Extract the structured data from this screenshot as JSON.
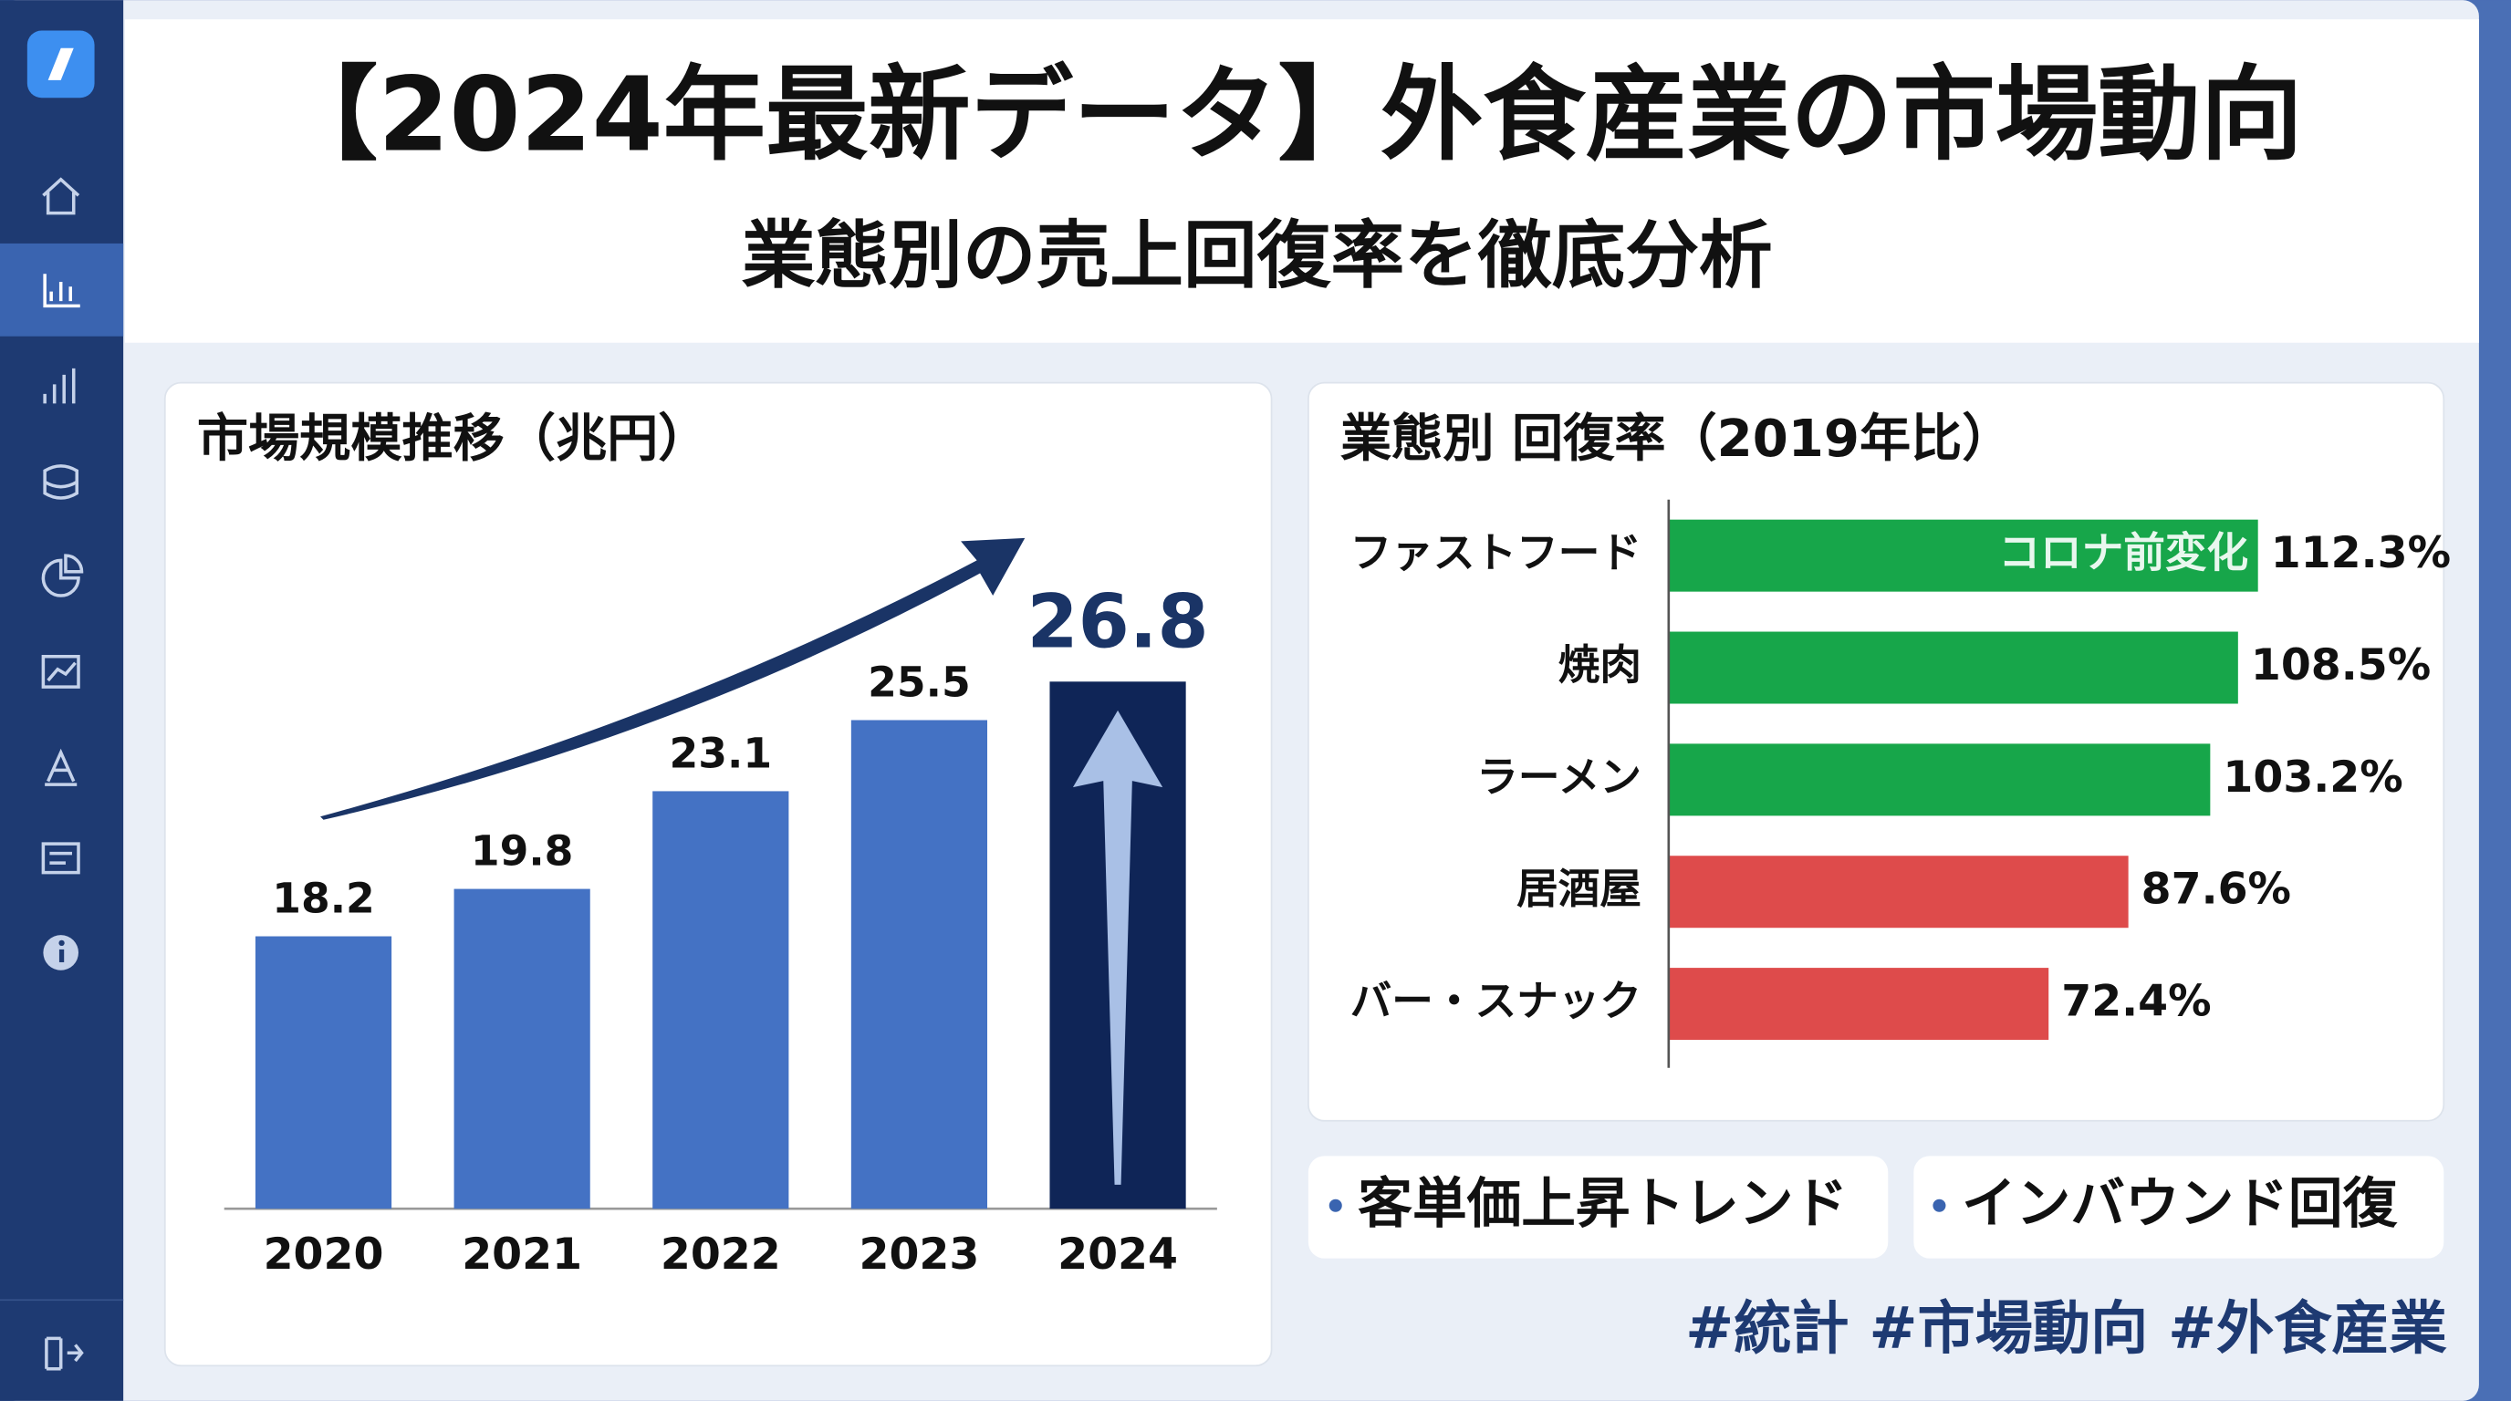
{
  "header": {
    "title": "【2024年最新データ】外食産業の市場動向",
    "subtitle": "業態別の売上回復率を徹底分析"
  },
  "chart_data": [
    {
      "type": "bar",
      "title": "市場規模推移（兆円）",
      "categories": [
        "2020",
        "2021",
        "2022",
        "2023",
        "2024"
      ],
      "values": [
        18.2,
        19.8,
        23.1,
        25.5,
        26.8
      ],
      "colors": [
        "#4472c4",
        "#4472c4",
        "#4472c4",
        "#4472c4",
        "#0f2557"
      ],
      "ylim": [
        9,
        29
      ]
    },
    {
      "type": "hbar",
      "title": "業態別 回復率（2019年比）",
      "categories": [
        "ファストフード",
        "焼肉",
        "ラーメン",
        "居酒屋",
        "バー・スナック"
      ],
      "values": [
        112.3,
        108.5,
        103.2,
        87.6,
        72.4
      ],
      "value_labels": [
        "112.3%",
        "108.5%",
        "103.2%",
        "87.6%",
        "72.4%"
      ],
      "colors": [
        "#17a64a",
        "#17a64a",
        "#17a64a",
        "#de4b4b",
        "#de4b4b"
      ],
      "annotation": "コロナ前変化",
      "xlim": [
        0,
        130
      ]
    }
  ],
  "tags": [
    "客単価上昇トレンド",
    "インバウンド回復"
  ],
  "hashtags": "#統計 #市場動向 #外食産業"
}
